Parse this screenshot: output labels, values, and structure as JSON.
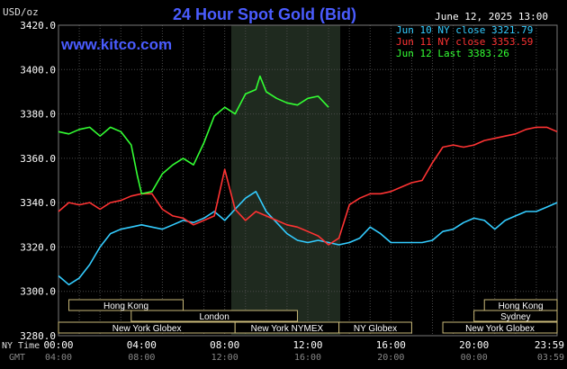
{
  "chart_data": {
    "type": "line",
    "title": "24 Hour Spot Gold (Bid)",
    "unit_label": "USD/oz",
    "timestamp": "June 12, 2025 13:00",
    "watermark": "www.kitco.com",
    "ylim": [
      3280,
      3420
    ],
    "y_ticks": [
      "3420.0",
      "3400.0",
      "3380.0",
      "3360.0",
      "3340.0",
      "3320.0",
      "3300.0",
      "3280.0"
    ],
    "x_axis_ny_label": "NY Time",
    "x_axis_gmt_label": "GMT",
    "x_ticks_ny": [
      "00:00",
      "04:00",
      "08:00",
      "12:00",
      "16:00",
      "20:00",
      "23:59"
    ],
    "x_ticks_gmt": [
      "04:00",
      "08:00",
      "12:00",
      "16:00",
      "20:00",
      "00:00",
      "03:59"
    ],
    "grid": true,
    "legend_position": "top-right",
    "highlight_label": "NY NYMEX",
    "series": [
      {
        "name": "Jun 10 NY close 3321.79",
        "color": "#33ccff",
        "x": [
          0,
          0.5,
          1,
          1.5,
          2,
          2.5,
          3,
          3.5,
          4,
          4.5,
          5,
          5.5,
          6,
          6.5,
          7,
          7.5,
          8,
          8.5,
          9,
          9.5,
          10,
          10.5,
          11,
          11.5,
          12,
          12.5,
          13,
          13.5,
          14,
          14.5,
          15,
          15.5,
          16,
          16.5,
          17,
          17.5,
          18,
          18.5,
          19,
          19.5,
          20,
          20.5,
          21,
          21.5,
          22,
          22.5,
          23,
          23.5,
          24
        ],
        "values": [
          3307,
          3303,
          3306,
          3312,
          3320,
          3326,
          3328,
          3329,
          3330,
          3329,
          3328,
          3330,
          3332,
          3331,
          3333,
          3336,
          3332,
          3337,
          3342,
          3345,
          3336,
          3331,
          3326,
          3323,
          3322,
          3323,
          3322,
          3321,
          3322,
          3324,
          3329,
          3326,
          3322,
          3322,
          3322,
          3322,
          3323,
          3327,
          3328,
          3331,
          3333,
          3332,
          3328,
          3332,
          3334,
          3336,
          3336,
          3338,
          3340
        ]
      },
      {
        "name": "Jun 11 NY close 3353.59",
        "color": "#ff3333",
        "x": [
          0,
          0.5,
          1,
          1.5,
          2,
          2.5,
          3,
          3.5,
          4,
          4.5,
          5,
          5.5,
          6,
          6.5,
          7,
          7.5,
          8,
          8.5,
          9,
          9.5,
          10,
          10.5,
          11,
          11.5,
          12,
          12.5,
          13,
          13.5,
          14,
          14.5,
          15,
          15.5,
          16,
          16.5,
          17,
          17.5,
          18,
          18.5,
          19,
          19.5,
          20,
          20.5,
          21,
          21.5,
          22,
          22.5,
          23,
          23.5,
          24
        ],
        "values": [
          3336,
          3340,
          3339,
          3340,
          3337,
          3340,
          3341,
          3343,
          3344,
          3344,
          3337,
          3334,
          3333,
          3330,
          3332,
          3334,
          3355,
          3337,
          3332,
          3336,
          3334,
          3332,
          3330,
          3329,
          3327,
          3325,
          3321,
          3324,
          3339,
          3342,
          3344,
          3344,
          3345,
          3347,
          3349,
          3350,
          3358,
          3365,
          3366,
          3365,
          3366,
          3368,
          3369,
          3370,
          3371,
          3373,
          3374,
          3374,
          3372
        ]
      },
      {
        "name": "Jun 12 Last 3383.26",
        "color": "#33ff33",
        "x": [
          0,
          0.5,
          1,
          1.5,
          2,
          2.5,
          3,
          3.5,
          3.8,
          4,
          4.5,
          5,
          5.5,
          6,
          6.5,
          7,
          7.5,
          8,
          8.5,
          9,
          9.5,
          9.7,
          10,
          10.5,
          11,
          11.5,
          12,
          12.5,
          13
        ],
        "values": [
          3372,
          3371,
          3373,
          3374,
          3370,
          3374,
          3372,
          3366,
          3352,
          3344,
          3345,
          3353,
          3357,
          3360,
          3357,
          3367,
          3379,
          3383,
          3380,
          3389,
          3391,
          3397,
          3390,
          3387,
          3385,
          3384,
          3387,
          3388,
          3383
        ]
      }
    ]
  },
  "sessions": [
    {
      "label": "Hong Kong",
      "row": 0,
      "start": 0.5,
      "end": 6.0
    },
    {
      "label": "Hong Kong",
      "row": 0,
      "start": 20.5,
      "end": 24.0
    },
    {
      "label": "London",
      "row": 1,
      "start": 3.5,
      "end": 11.5
    },
    {
      "label": "Sydney",
      "row": 1,
      "start": 20.0,
      "end": 24.0
    },
    {
      "label": "New York Globex",
      "row": 2,
      "start": 0.0,
      "end": 8.5
    },
    {
      "label": "New York NYMEX",
      "row": 2,
      "start": 8.5,
      "end": 13.5
    },
    {
      "label": "NY Globex",
      "row": 2,
      "start": 13.5,
      "end": 17.0
    },
    {
      "label": "New York Globex",
      "row": 2,
      "start": 18.5,
      "end": 24.0
    }
  ]
}
